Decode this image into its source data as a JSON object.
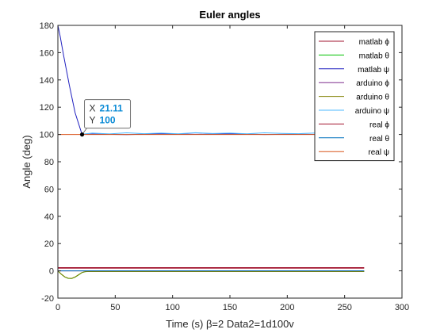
{
  "chart_data": {
    "type": "line",
    "title": "Euler angles",
    "xlabel": "Time (s) β=2 Data2=1d100v",
    "ylabel": "Angle (deg)",
    "xlim": [
      0,
      300
    ],
    "ylim": [
      -20,
      180
    ],
    "xticks": [
      0,
      50,
      100,
      150,
      200,
      250,
      300
    ],
    "yticks": [
      -20,
      0,
      20,
      40,
      60,
      80,
      100,
      120,
      140,
      160,
      180
    ],
    "grid": false,
    "legend_location": "top-right",
    "series": [
      {
        "name": "matlab ϕ",
        "color": "#a2142f",
        "x": [
          0,
          267
        ],
        "y": [
          2,
          2
        ]
      },
      {
        "name": "matlab θ",
        "color": "#00c000",
        "x": [
          0,
          3,
          6,
          9,
          12,
          15,
          18,
          21,
          24,
          30,
          50,
          100,
          150,
          200,
          267
        ],
        "y": [
          0,
          -2.5,
          -4.5,
          -5.5,
          -5.6,
          -4.6,
          -3,
          -1.3,
          -0.6,
          -0.4,
          -0.4,
          -0.4,
          -0.4,
          -0.4,
          -0.4
        ]
      },
      {
        "name": "matlab ψ",
        "color": "#1f1fbf",
        "x": [
          0,
          2,
          5,
          10,
          15,
          21.11,
          30,
          60,
          90,
          120,
          150,
          180,
          210,
          240,
          267
        ],
        "y": [
          180,
          172,
          158,
          136,
          116,
          100,
          100.3,
          99.9,
          100.5,
          100.1,
          100.4,
          100,
          100.2,
          99.9,
          100.1
        ]
      },
      {
        "name": "arduino ϕ",
        "color": "#7e2f8e",
        "x": [
          0,
          267
        ],
        "y": [
          0,
          0
        ]
      },
      {
        "name": "arduino θ",
        "color": "#808000",
        "x": [
          0,
          3,
          6,
          9,
          12,
          15,
          18,
          21,
          24,
          267
        ],
        "y": [
          0,
          -2.4,
          -4.4,
          -5.4,
          -5.5,
          -4.5,
          -2.9,
          -1.2,
          -0.5,
          -0.5
        ]
      },
      {
        "name": "arduino ψ",
        "color": "#4db8ff",
        "x": [
          21,
          30,
          45,
          60,
          75,
          90,
          105,
          120,
          135,
          150,
          165,
          180,
          195,
          210,
          225,
          240,
          255,
          267
        ],
        "y": [
          100.2,
          101,
          100.4,
          101.2,
          100.6,
          101,
          100.5,
          101.3,
          100.7,
          101,
          100.5,
          101.2,
          100.8,
          100.6,
          101.1,
          100.5,
          101,
          100.7
        ]
      },
      {
        "name": "real ϕ",
        "color": "#a2142f",
        "x": [
          0,
          267
        ],
        "y": [
          2.4,
          2.4
        ]
      },
      {
        "name": "real θ",
        "color": "#0072bd",
        "x": [
          0,
          267
        ],
        "y": [
          0,
          0
        ]
      },
      {
        "name": "real ψ",
        "color": "#d95319",
        "x": [
          0,
          267
        ],
        "y": [
          100,
          100
        ]
      }
    ],
    "annotations": [
      {
        "type": "datatip",
        "x": 21.11,
        "y": 100,
        "x_label": "X",
        "x_text": "21.11",
        "y_label": "Y",
        "y_text": "100"
      }
    ]
  }
}
